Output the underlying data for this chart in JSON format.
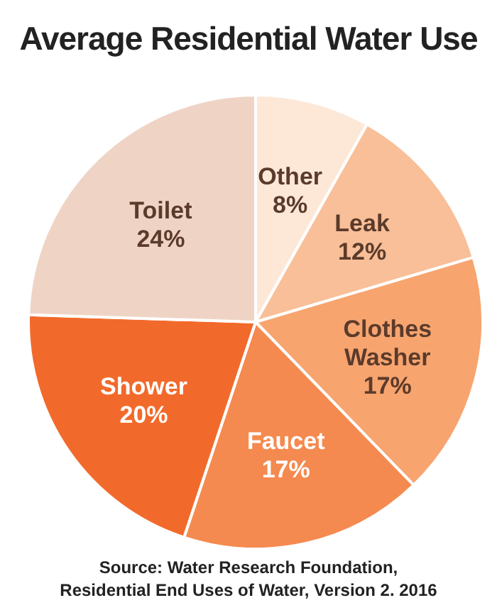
{
  "chart_data": {
    "type": "pie",
    "title": "Average Residential Water Use",
    "categories": [
      "Other",
      "Leak",
      "Clothes Washer",
      "Faucet",
      "Shower",
      "Toilet"
    ],
    "values": [
      8,
      12,
      17,
      17,
      20,
      24
    ],
    "value_labels": [
      "8%",
      "12%",
      "17%",
      "17%",
      "20%",
      "24%"
    ],
    "colors": [
      "#fde8d8",
      "#f9bf98",
      "#f7a46f",
      "#f58a50",
      "#f26a2b",
      "#efd4c6"
    ],
    "annotations": [
      "Source: Water Research Foundation,",
      "Residential End Uses of Water, Version 2. 2016"
    ]
  }
}
